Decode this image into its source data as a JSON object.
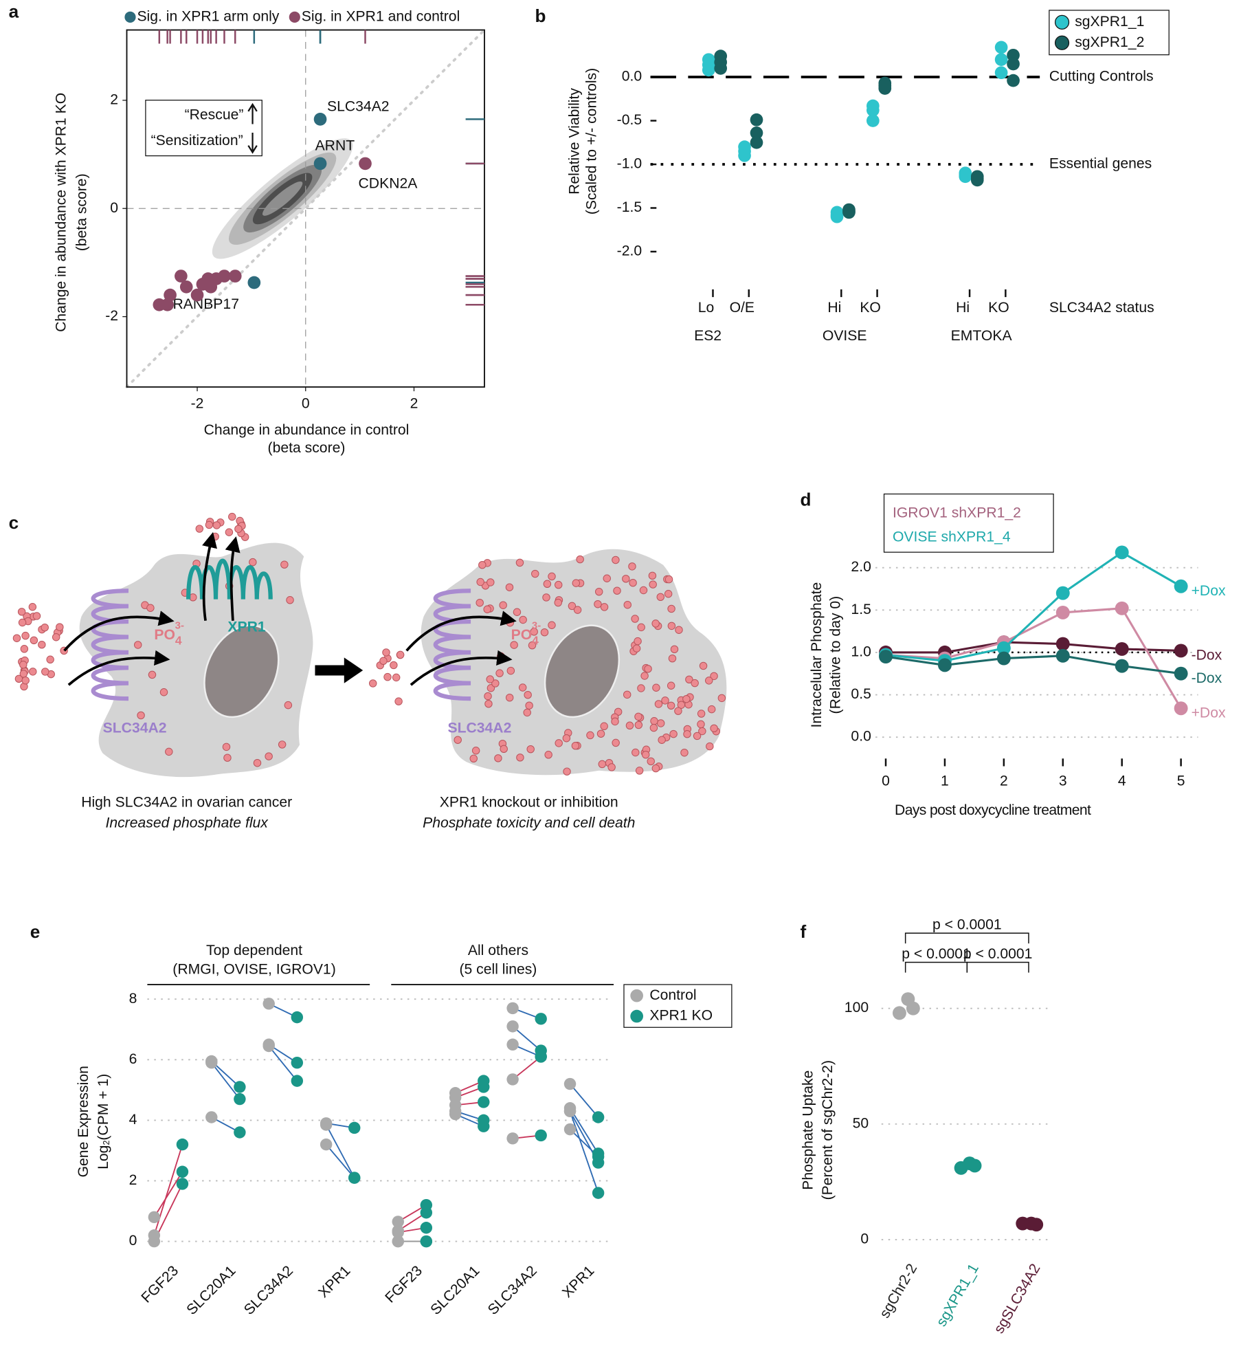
{
  "panels": [
    "a",
    "b",
    "c",
    "d",
    "e",
    "f"
  ],
  "diagram": {
    "phosphate": {
      "base": "PO",
      "subscript": "4",
      "superscript": "3-"
    },
    "exporter": "XPR1",
    "importer": "SLC34A2",
    "left_caption": "High SLC34A2 in ovarian cancer",
    "left_subcaption": "Increased phosphate flux",
    "right_caption": "XPR1 knockout or inhibition",
    "right_subcaption": "Phosphate toxicity and cell death"
  },
  "chart_data": [
    {
      "type": "scatter",
      "x_label": "Change in abundance in control",
      "x_sublabel": "(beta score)",
      "y_label": "Change in abundance with XPR1 KO",
      "y_sublabel": "(beta score)",
      "xlim": [
        -3.3,
        3.3
      ],
      "ylim": [
        -3.3,
        3.3
      ],
      "xticks": [
        -2,
        0,
        2
      ],
      "yticks": [
        -2,
        0,
        2
      ],
      "zero_lines": true,
      "diagonal": true,
      "rug": true,
      "annotation": {
        "top": "“Rescue”",
        "bottom": "“Sensitization”"
      },
      "series": [
        {
          "name": "Sig. in XPR1 arm only",
          "color": "#2d6b7c",
          "x": [
            0.27,
            0.27,
            -0.95
          ],
          "y": [
            1.65,
            0.83,
            -1.37
          ],
          "labels": [
            "SLC34A2",
            "ARNT",
            "RANBP17"
          ]
        },
        {
          "name": "Sig. in XPR1 and control",
          "color": "#8c4a66",
          "x": [
            1.1,
            -2.7,
            -2.55,
            -2.5,
            -2.3,
            -2.2,
            -2.0,
            -1.9,
            -1.75,
            -1.8,
            -1.65,
            -1.5,
            -1.3
          ],
          "y": [
            0.83,
            -1.78,
            -1.78,
            -1.6,
            -1.25,
            -1.45,
            -1.6,
            -1.4,
            -1.45,
            -1.3,
            -1.3,
            -1.25,
            -1.25
          ],
          "labels": [
            "CDKN2A",
            null,
            null,
            null,
            null,
            null,
            null,
            null,
            null,
            null,
            null,
            null,
            null
          ]
        }
      ]
    },
    {
      "type": "dot",
      "y_label": "Relative Viability",
      "y_sublabel": "(Scaled to +/- controls)",
      "ylim": [
        -2.05,
        0.4
      ],
      "yticks": [
        {
          "value": 0,
          "label": "0.0"
        },
        -0.5,
        {
          "value": -1,
          "label": "-1.0"
        },
        -1.5,
        {
          "value": -2,
          "label": "-2.0"
        }
      ],
      "categories": [
        "Lo",
        "O/E",
        "Hi",
        "KO",
        "Hi",
        "KO"
      ],
      "groups": [
        "ES2",
        "OVISE",
        "EMTOKA"
      ],
      "x_label": "SLC34A2 status",
      "reference_lines": [
        {
          "value": 0,
          "label": "Cutting Controls",
          "style": "dashed"
        },
        {
          "value": -1,
          "label": "Essential genes",
          "style": "dotted"
        }
      ],
      "series": [
        {
          "name": "sgXPR1_1",
          "color": "#2ec4cc",
          "values": [
            [
              0.2,
              0.14,
              0.08
            ],
            [
              -0.8,
              -0.85,
              -0.9
            ],
            [
              -1.58,
              -1.6,
              -1.55
            ],
            [
              -0.33,
              -0.38,
              -0.5
            ],
            [
              -1.1,
              -1.12,
              -1.14
            ],
            [
              0.34,
              0.2,
              0.05
            ]
          ]
        },
        {
          "name": "sgXPR1_2",
          "color": "#19605f",
          "values": [
            [
              0.24,
              0.17,
              0.1
            ],
            [
              -0.49,
              -0.64,
              -0.75
            ],
            [
              -1.52,
              -1.54,
              -1.55
            ],
            [
              -0.07,
              -0.13,
              -0.1
            ],
            [
              -1.14,
              -1.16,
              -1.18
            ],
            [
              0.25,
              0.15,
              -0.04
            ]
          ]
        }
      ]
    },
    {
      "type": "line",
      "x_label": "Days post doxycycline treatment",
      "y_label": "Intracelular Phosphate",
      "y_sublabel": "(Relative to day 0)",
      "x": [
        0,
        1,
        2,
        3,
        4,
        5
      ],
      "xlim": [
        0,
        5
      ],
      "xticks": [
        0,
        1,
        2,
        3,
        4,
        5
      ],
      "ylim": [
        -0.2,
        2.45
      ],
      "yticks": [
        {
          "value": 0,
          "label": "0.0"
        },
        0.5,
        {
          "value": 1,
          "label": "1.0"
        },
        1.5,
        {
          "value": 2,
          "label": "2.0"
        }
      ],
      "grid": true,
      "reference_line": 1,
      "lines": [
        {
          "name": "IGROV1 shXPR1_2",
          "color": "#a4627e",
          "series": [
            {
              "name": "-Dox",
              "color": "#5a1c35",
              "values": [
                1.0,
                1.0,
                1.12,
                1.1,
                1.04,
                1.02
              ]
            },
            {
              "name": "+Dox",
              "color": "#cf8aa3",
              "values": [
                0.97,
                0.93,
                1.12,
                1.47,
                1.52,
                0.34
              ]
            }
          ]
        },
        {
          "name": "OVISE shXPR1_4",
          "color": "#1fa9ab",
          "series": [
            {
              "name": "+Dox",
              "color": "#20b3b5",
              "values": [
                0.97,
                0.9,
                1.05,
                1.7,
                2.18,
                1.78
              ]
            },
            {
              "name": "-Dox",
              "color": "#1c6a68",
              "values": [
                0.95,
                0.85,
                0.93,
                0.96,
                0.84,
                0.75
              ]
            }
          ]
        }
      ]
    },
    {
      "type": "paired",
      "y_label": "Gene Expression",
      "y_sublabel": {
        "base": "Log",
        "subscript": "2",
        "rest": "(CPM + 1)"
      },
      "ylim": [
        -0.3,
        8.3
      ],
      "yticks": [
        0,
        2,
        4,
        6,
        8
      ],
      "grid": true,
      "up_color": "#c8365a",
      "down_color": "#2f6bb3",
      "facets": [
        {
          "title": "Top dependent",
          "subtitle": "(RMGI, OVISE, IGROV1)",
          "categories": [
            "FGF23",
            "SLC20A1",
            "SLC34A2",
            "XPR1"
          ]
        },
        {
          "title": "All others",
          "subtitle": "(5 cell lines)",
          "categories": [
            "FGF23",
            "SLC20A1",
            "SLC34A2",
            "XPR1"
          ]
        }
      ],
      "series": [
        {
          "name": "Control",
          "color": "#aaaaaa",
          "values": [
            [
              [
                0.2,
                0.8,
                0
              ],
              [
                5.95,
                5.9,
                4.1
              ],
              [
                7.85,
                6.5,
                6.45
              ],
              [
                3.9,
                3.85,
                3.2
              ]
            ],
            [
              [
                0.65,
                0.35,
                0.3,
                0,
                0
              ],
              [
                4.9,
                4.75,
                4.5,
                4.3,
                4.2
              ],
              [
                7.7,
                7.1,
                6.5,
                5.35,
                3.4
              ],
              [
                5.2,
                4.4,
                4.3,
                4.3,
                3.7
              ]
            ]
          ]
        },
        {
          "name": "XPR1 KO",
          "color": "#1a9688",
          "values": [
            [
              [
                3.2,
                2.3,
                1.9
              ],
              [
                5.1,
                4.7,
                3.6
              ],
              [
                7.4,
                5.9,
                5.3
              ],
              [
                3.75,
                2.1,
                2.1
              ]
            ],
            [
              [
                1.2,
                0.95,
                0.45,
                0,
                0
              ],
              [
                5.3,
                5.1,
                4.6,
                4.0,
                3.8
              ],
              [
                7.35,
                6.3,
                6.1,
                6.1,
                3.5
              ],
              [
                4.1,
                2.9,
                1.6,
                2.6,
                2.8
              ]
            ]
          ]
        }
      ]
    },
    {
      "type": "strip",
      "y_label": "Phosphate Uptake",
      "y_sublabel": "(Percent of sgChr2-2)",
      "ylim": [
        -8,
        114
      ],
      "yticks": [
        0,
        50,
        100
      ],
      "grid": true,
      "categories": [
        "sgChr2-2",
        "sgXPR1_1",
        "sgSLC34A2"
      ],
      "colors": [
        "#aaaaaa",
        "#1a9688",
        "#5a1c35"
      ],
      "label_colors": [
        "#222222",
        "#1a9688",
        "#5a1c35"
      ],
      "values": [
        [
          98,
          104,
          100
        ],
        [
          31,
          33,
          32
        ],
        [
          7,
          7,
          6.5
        ]
      ],
      "comparisons": [
        {
          "pair": [
            0,
            2
          ],
          "label": "p < 0.0001"
        },
        {
          "pair": [
            0,
            1
          ],
          "label": "p < 0.0001"
        },
        {
          "pair": [
            1,
            2
          ],
          "label": "p < 0.0001"
        }
      ]
    }
  ]
}
